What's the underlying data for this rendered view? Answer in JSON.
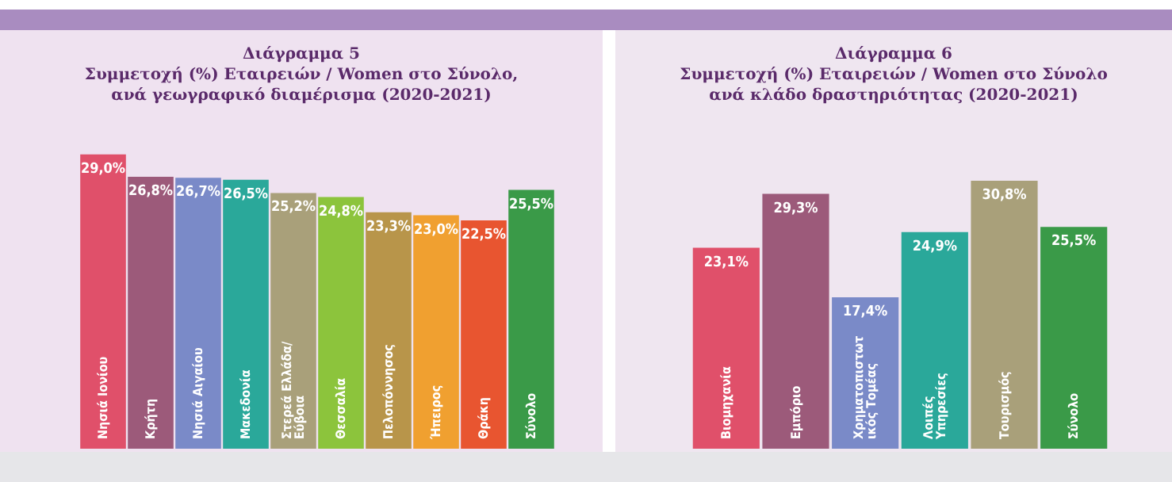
{
  "chart_data": [
    {
      "type": "bar",
      "title": "Διάγραμμα 5\nΣυμμετοχή (%) Εταιρειών / Women στο Σύνολο,\nανά γεωγραφικό διαμέρισμα (2020-2021)",
      "categories": [
        "Νησιά Ιονίου",
        "Κρήτη",
        "Νησιά Αιγαίου",
        "Μακεδονία",
        "Στερεά Ελλάδα/ Εύβοια",
        "Θεσσαλία",
        "Πελοπόννησος",
        "Ήπειρος",
        "Θράκη",
        "Σύνολο"
      ],
      "values": [
        29.0,
        26.8,
        26.7,
        26.5,
        25.2,
        24.8,
        23.3,
        23.0,
        22.5,
        25.5
      ],
      "value_labels": [
        "29,0%",
        "26,8%",
        "26,7%",
        "26,5%",
        "25,2%",
        "24,8%",
        "23,3%",
        "23,0%",
        "22,5%",
        "25,5%"
      ],
      "colors": [
        "#e0506a",
        "#9c5a7a",
        "#7a8ac8",
        "#2aa89a",
        "#a9a07a",
        "#8cc43c",
        "#b8954a",
        "#f0a030",
        "#e85530",
        "#3a9a48"
      ]
    },
    {
      "type": "bar",
      "title": "Διάγραμμα 6\nΣυμμετοχή (%) Εταιρειών / Women στο Σύνολο\nανά κλάδο δραστηριότητας (2020-2021)",
      "categories": [
        "Βιομηχανία",
        "Εμπόριο",
        "Χρηματοπιστωτικός Τομέας",
        "Λοιπές Υπηρεσίες",
        "Τουρισμός",
        "Σύνολο"
      ],
      "values": [
        23.1,
        29.3,
        17.4,
        24.9,
        30.8,
        25.5
      ],
      "value_labels": [
        "23,1%",
        "29,3%",
        "17,4%",
        "24,9%",
        "30,8%",
        "25,5%"
      ],
      "colors": [
        "#e0506a",
        "#9c5a7a",
        "#7a8ac8",
        "#2aa89a",
        "#a9a07a",
        "#3a9a48"
      ]
    }
  ]
}
